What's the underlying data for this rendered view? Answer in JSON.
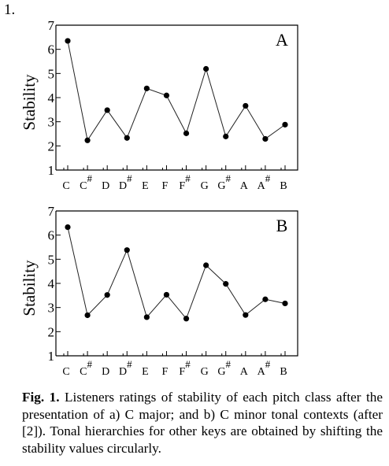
{
  "page_label": "1.",
  "caption": {
    "label": "Fig. 1.",
    "text": "Listeners ratings of stability of each pitch class after the presentation of a) C major; and b) C minor tonal contexts (after [2]). Tonal hierarchies for other keys are obtained by shifting the stability values circularly."
  },
  "chart_data": [
    {
      "type": "line",
      "panel_label": "A",
      "ylabel": "Stability",
      "ylim": [
        1,
        7
      ],
      "yticks": [
        1,
        2,
        3,
        4,
        5,
        6,
        7
      ],
      "categories": [
        "C",
        "C#",
        "D",
        "D#",
        "E",
        "F",
        "F#",
        "G",
        "G#",
        "A",
        "A#",
        "B"
      ],
      "category_labels": [
        {
          "base": "C",
          "sharp": ""
        },
        {
          "base": "C",
          "sharp": "#"
        },
        {
          "base": "D",
          "sharp": ""
        },
        {
          "base": "D",
          "sharp": "#"
        },
        {
          "base": "E",
          "sharp": ""
        },
        {
          "base": "F",
          "sharp": ""
        },
        {
          "base": "F",
          "sharp": "#"
        },
        {
          "base": "G",
          "sharp": ""
        },
        {
          "base": "G",
          "sharp": "#"
        },
        {
          "base": "A",
          "sharp": ""
        },
        {
          "base": "A",
          "sharp": "#"
        },
        {
          "base": "B",
          "sharp": ""
        }
      ],
      "values": [
        6.35,
        2.23,
        3.48,
        2.33,
        4.38,
        4.09,
        2.52,
        5.19,
        2.39,
        3.66,
        2.29,
        2.88
      ],
      "grid": false
    },
    {
      "type": "line",
      "panel_label": "B",
      "ylabel": "Stability",
      "ylim": [
        1,
        7
      ],
      "yticks": [
        1,
        2,
        3,
        4,
        5,
        6,
        7
      ],
      "categories": [
        "C",
        "C#",
        "D",
        "D#",
        "E",
        "F",
        "F#",
        "G",
        "G#",
        "A",
        "A#",
        "B"
      ],
      "category_labels": [
        {
          "base": "C",
          "sharp": ""
        },
        {
          "base": "C",
          "sharp": "#"
        },
        {
          "base": "D",
          "sharp": ""
        },
        {
          "base": "D",
          "sharp": "#"
        },
        {
          "base": "E",
          "sharp": ""
        },
        {
          "base": "F",
          "sharp": ""
        },
        {
          "base": "F",
          "sharp": "#"
        },
        {
          "base": "G",
          "sharp": ""
        },
        {
          "base": "G",
          "sharp": "#"
        },
        {
          "base": "A",
          "sharp": ""
        },
        {
          "base": "A",
          "sharp": "#"
        },
        {
          "base": "B",
          "sharp": ""
        }
      ],
      "values": [
        6.33,
        2.68,
        3.52,
        5.38,
        2.6,
        3.53,
        2.54,
        4.75,
        3.98,
        2.69,
        3.34,
        3.17
      ],
      "grid": false
    }
  ]
}
